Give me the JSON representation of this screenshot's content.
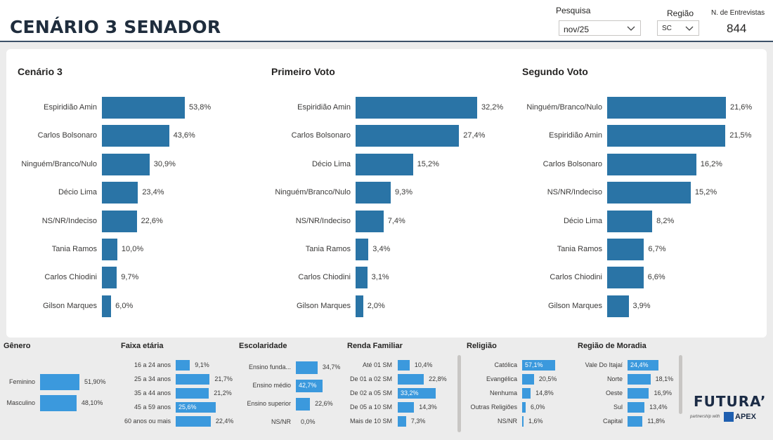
{
  "header": {
    "title": "CENÁRIO 3 SENADOR",
    "pesquisa_label": "Pesquisa",
    "pesquisa_value": "nov/25",
    "regiao_label": "Região",
    "regiao_value": "SC",
    "entrevistas_label": "N. de Entrevistas",
    "entrevistas_value": "844"
  },
  "colors": {
    "main_bar": "#2a74a6",
    "small_bar": "#3b99dd",
    "header_rule": "#3b5068"
  },
  "chart_data": [
    {
      "type": "bar",
      "orientation": "horizontal",
      "title": "Cenário 3",
      "categories": [
        "Espiridião Amin",
        "Carlos Bolsonaro",
        "Ninguém/Branco/Nulo",
        "Décio Lima",
        "NS/NR/Indeciso",
        "Tania Ramos",
        "Carlos Chiodini",
        "Gilson Marques"
      ],
      "values": [
        53.8,
        43.6,
        30.9,
        23.4,
        22.6,
        10.0,
        9.7,
        6.0
      ],
      "labels": [
        "53,8%",
        "43,6%",
        "30,9%",
        "23,4%",
        "22,6%",
        "10,0%",
        "9,7%",
        "6,0%"
      ],
      "xlim": [
        0,
        53.8
      ]
    },
    {
      "type": "bar",
      "orientation": "horizontal",
      "title": "Primeiro Voto",
      "categories": [
        "Espiridião Amin",
        "Carlos Bolsonaro",
        "Décio Lima",
        "Ninguém/Branco/Nulo",
        "NS/NR/Indeciso",
        "Tania Ramos",
        "Carlos Chiodini",
        "Gilson Marques"
      ],
      "values": [
        32.2,
        27.4,
        15.2,
        9.3,
        7.4,
        3.4,
        3.1,
        2.0
      ],
      "labels": [
        "32,2%",
        "27,4%",
        "15,2%",
        "9,3%",
        "7,4%",
        "3,4%",
        "3,1%",
        "2,0%"
      ],
      "xlim": [
        0,
        32.2
      ]
    },
    {
      "type": "bar",
      "orientation": "horizontal",
      "title": "Segundo Voto",
      "categories": [
        "Ninguém/Branco/Nulo",
        "Espiridião Amin",
        "Carlos Bolsonaro",
        "NS/NR/Indeciso",
        "Décio Lima",
        "Tania Ramos",
        "Carlos Chiodini",
        "Gilson Marques"
      ],
      "values": [
        21.6,
        21.5,
        16.2,
        15.2,
        8.2,
        6.7,
        6.6,
        3.9
      ],
      "labels": [
        "21,6%",
        "21,5%",
        "16,2%",
        "15,2%",
        "8,2%",
        "6,7%",
        "6,6%",
        "3,9%"
      ],
      "xlim": [
        0,
        21.6
      ]
    },
    {
      "type": "bar",
      "orientation": "horizontal",
      "title": "Gênero",
      "categories": [
        "Feminino",
        "Masculino"
      ],
      "values": [
        51.9,
        48.1
      ],
      "labels": [
        "51,90%",
        "48,10%"
      ],
      "xlim": [
        0,
        51.9
      ]
    },
    {
      "type": "bar",
      "orientation": "horizontal",
      "title": "Faixa etária",
      "categories": [
        "16 a 24 anos",
        "25 a 34 anos",
        "35 a 44 anos",
        "45 a 59 anos",
        "60 anos ou mais"
      ],
      "values": [
        9.1,
        21.7,
        21.2,
        25.6,
        22.4
      ],
      "labels": [
        "9,1%",
        "21,7%",
        "21,2%",
        "25,6%",
        "22,4%"
      ],
      "highlight": [
        false,
        false,
        false,
        true,
        false
      ],
      "xlim": [
        0,
        25.6
      ]
    },
    {
      "type": "bar",
      "orientation": "horizontal",
      "title": "Escolaridade",
      "categories": [
        "Ensino funda...",
        "Ensino médio",
        "Ensino superior",
        "NS/NR"
      ],
      "values": [
        34.7,
        42.7,
        22.6,
        0.0
      ],
      "labels": [
        "34,7%",
        "42,7%",
        "22,6%",
        "0,0%"
      ],
      "highlight": [
        false,
        true,
        false,
        false
      ],
      "xlim": [
        0,
        42.7
      ]
    },
    {
      "type": "bar",
      "orientation": "horizontal",
      "title": "Renda Familiar",
      "categories": [
        "Até 01 SM",
        "De 01 a 02 SM",
        "De 02 a 05 SM",
        "De 05 a 10 SM",
        "Mais de 10 SM"
      ],
      "values": [
        10.4,
        22.8,
        33.2,
        14.3,
        7.3
      ],
      "labels": [
        "10,4%",
        "22,8%",
        "33,2%",
        "14,3%",
        "7,3%"
      ],
      "highlight": [
        false,
        false,
        true,
        false,
        false
      ],
      "xlim": [
        0,
        33.2
      ]
    },
    {
      "type": "bar",
      "orientation": "horizontal",
      "title": "Religião",
      "categories": [
        "Católica",
        "Evangélica",
        "Nenhuma",
        "Outras Religiões",
        "NS/NR"
      ],
      "values": [
        57.1,
        20.5,
        14.8,
        6.0,
        1.6
      ],
      "labels": [
        "57,1%",
        "20,5%",
        "14,8%",
        "6,0%",
        "1,6%"
      ],
      "highlight": [
        true,
        false,
        false,
        false,
        false
      ],
      "xlim": [
        0,
        57.1
      ]
    },
    {
      "type": "bar",
      "orientation": "horizontal",
      "title": "Região de Moradia",
      "categories": [
        "Vale Do Itajaí",
        "Norte",
        "Oeste",
        "Sul",
        "Capital"
      ],
      "values": [
        24.4,
        18.1,
        16.9,
        13.4,
        11.8
      ],
      "labels": [
        "24,4%",
        "18,1%",
        "16,9%",
        "13,4%",
        "11,8%"
      ],
      "highlight": [
        true,
        false,
        false,
        false,
        false
      ],
      "xlim": [
        0,
        24.4
      ]
    }
  ],
  "branding": {
    "logo": "FUTURA’",
    "partner_text": "partnership with",
    "apex": "APEX"
  }
}
